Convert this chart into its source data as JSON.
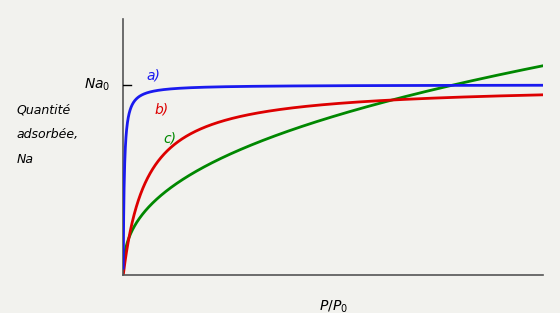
{
  "xlabel": "$P/P_0$",
  "ylabel_line1": "Quantité",
  "ylabel_line2": "adsorbée,",
  "ylabel_line3": "Na",
  "Na0_label": "Na₀",
  "curve_a_color": "#1a1aee",
  "curve_b_color": "#dd0000",
  "curve_c_color": "#008800",
  "Na0": 0.78,
  "background_color": "#f2f2ee",
  "xlim": [
    0,
    1.0
  ],
  "ylim": [
    0,
    1.05
  ]
}
